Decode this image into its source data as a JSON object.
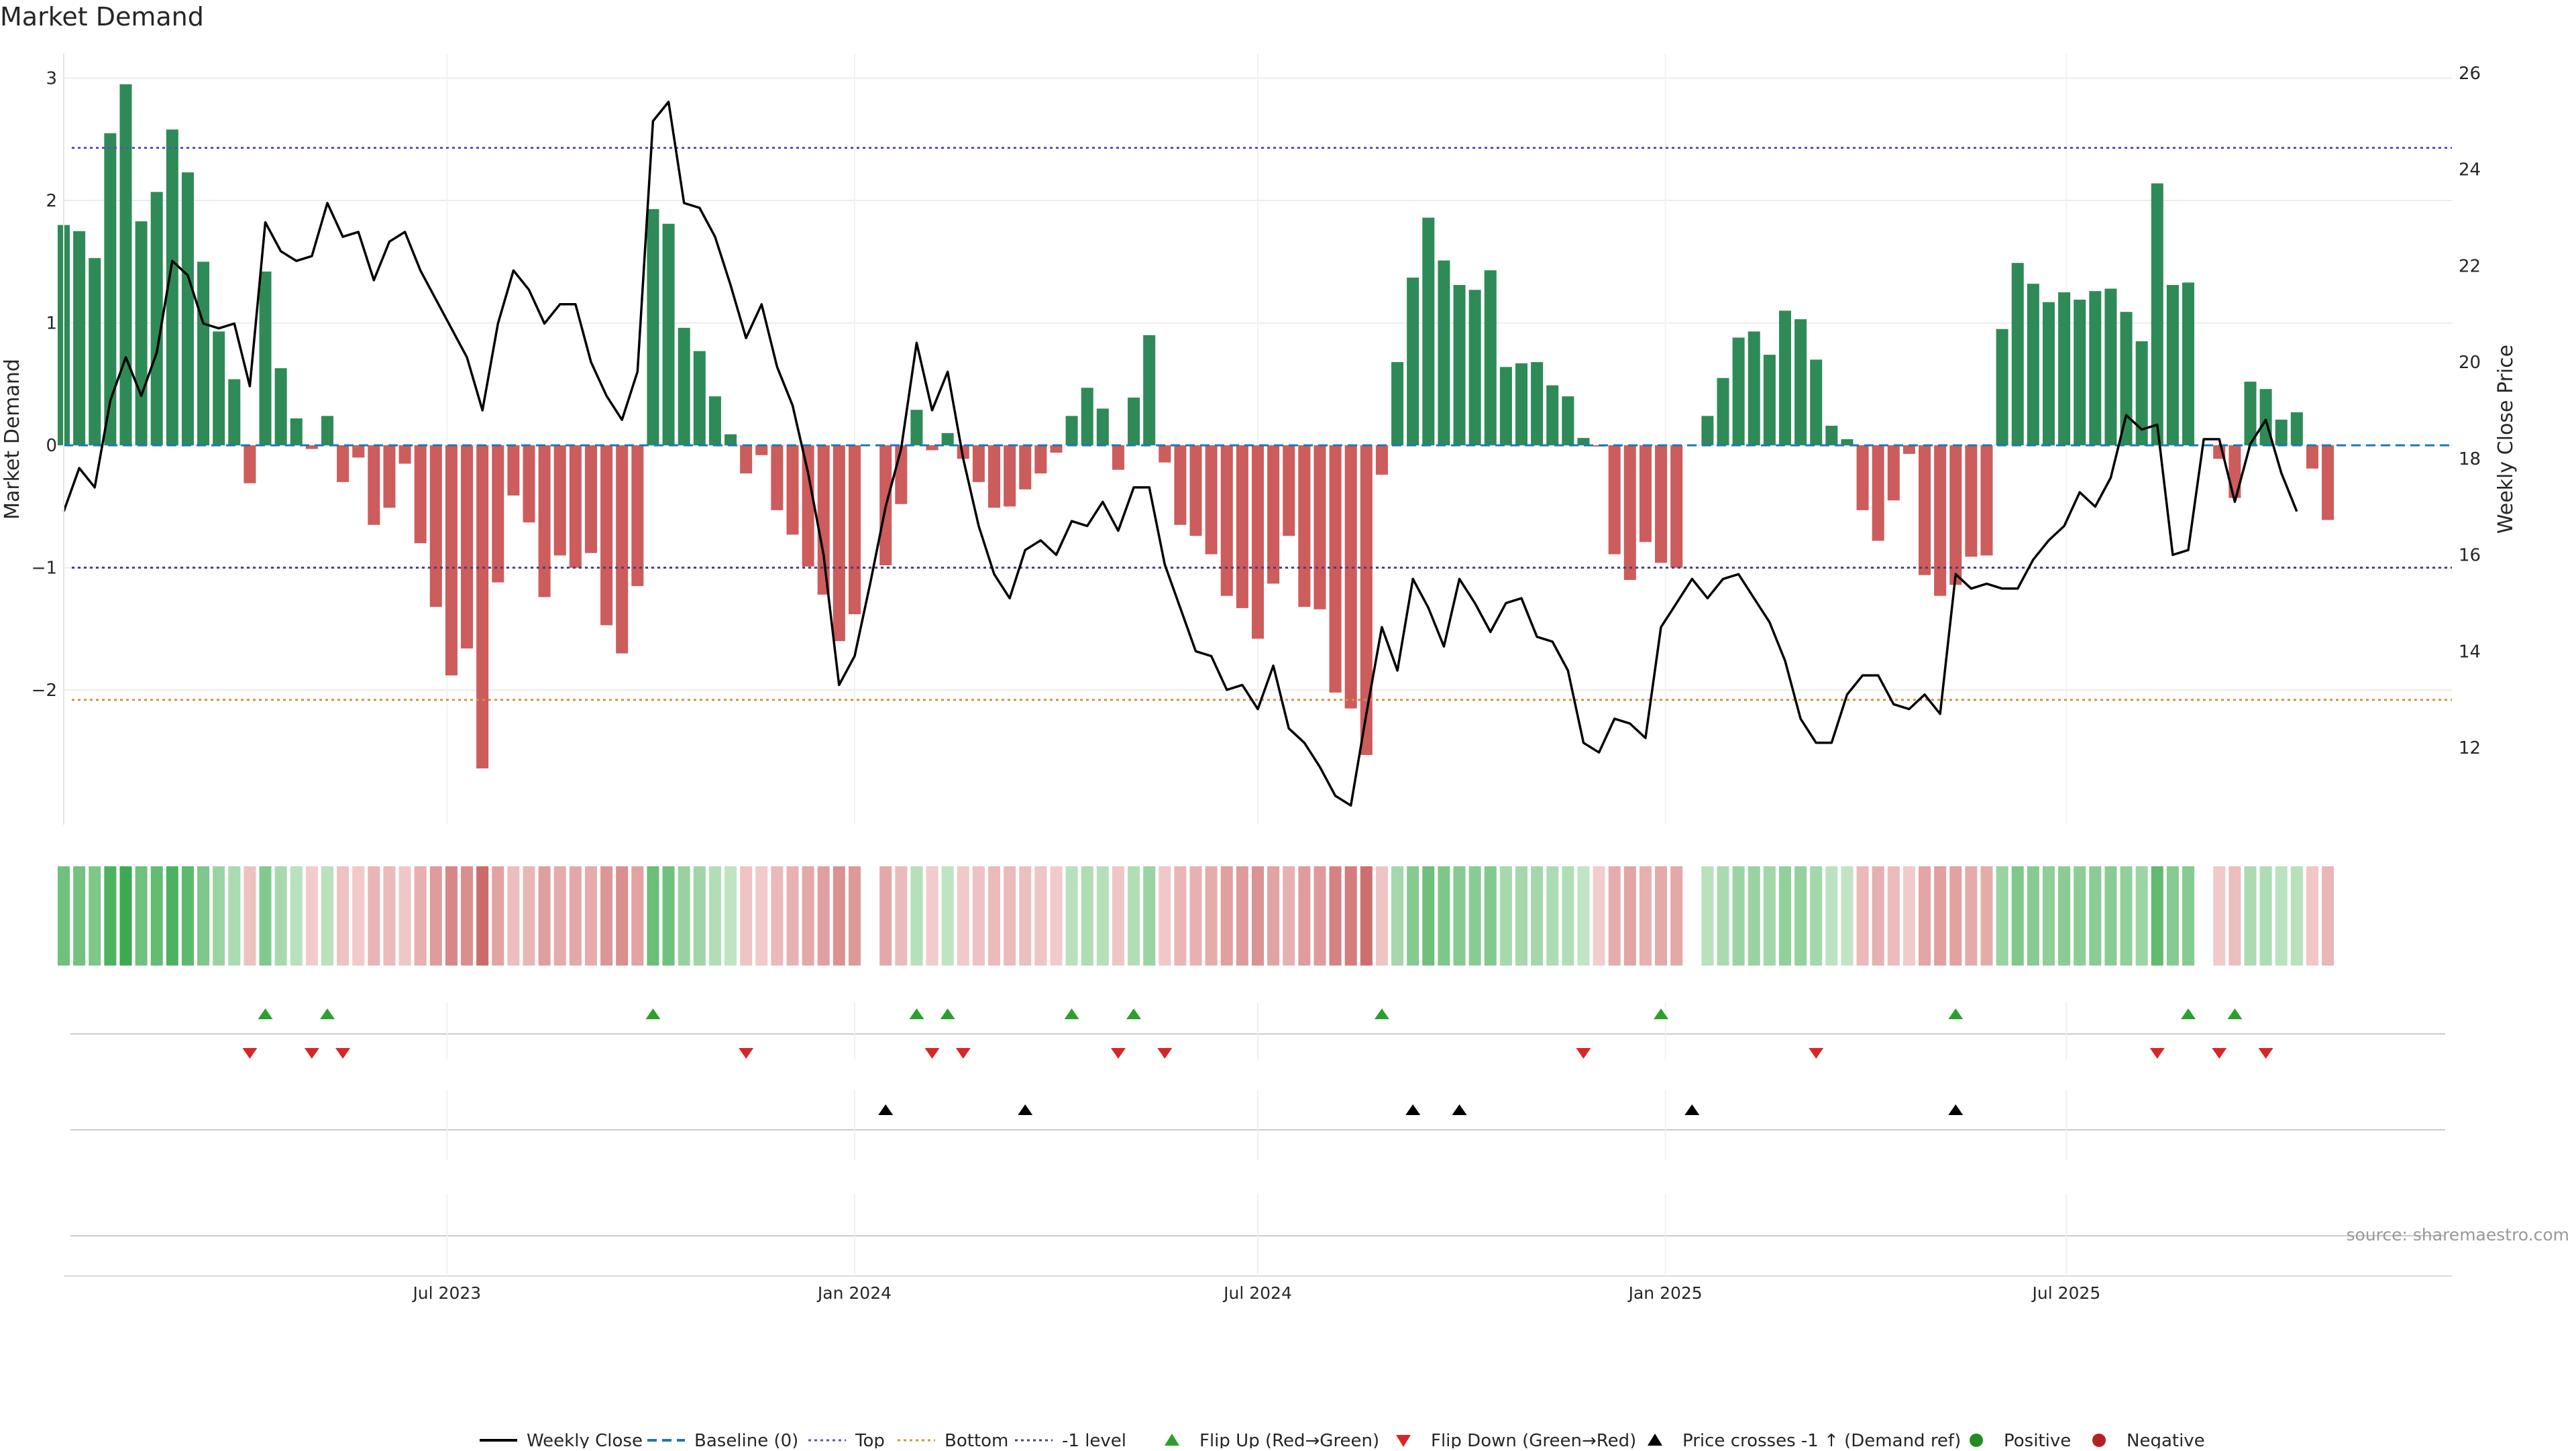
{
  "chart_data": {
    "type": "bar",
    "title": "Market Demand",
    "ylabel_left": "Market Demand",
    "ylabel_right": "Weekly Close Price",
    "source": "source: sharemaestro.com",
    "x_start": "2023-01-09",
    "week_interval_days": 7,
    "x_range": [
      "2023-01-09",
      "2025-12-22"
    ],
    "y_left_range": [
      -3.1,
      3.2
    ],
    "y_right_range": [
      10.4,
      26.4
    ],
    "y_left_ticks": [
      3,
      2,
      1,
      0,
      -1,
      -2
    ],
    "y_left_tick_labels": [
      "3",
      "2",
      "1",
      "0",
      "−1",
      "−2"
    ],
    "y_right_ticks": [
      26,
      24,
      22,
      20,
      18,
      16,
      14,
      12
    ],
    "y_right_tick_labels": [
      "26",
      "24",
      "22",
      "20",
      "18",
      "16",
      "14",
      "12"
    ],
    "x_ticks": [
      {
        "date": "2023-07-01",
        "label": "Jul 2023"
      },
      {
        "date": "2024-01-01",
        "label": "Jan 2024"
      },
      {
        "date": "2024-07-01",
        "label": "Jul 2024"
      },
      {
        "date": "2025-01-01",
        "label": "Jan 2025"
      },
      {
        "date": "2025-07-01",
        "label": "Jul 2025"
      }
    ],
    "reference_lines": {
      "baseline": 0,
      "top": 2.43,
      "bottom": -2.08,
      "minus_one": -1
    },
    "demand": [
      1.8,
      1.75,
      1.53,
      2.55,
      2.95,
      1.83,
      2.07,
      2.58,
      2.23,
      1.5,
      0.93,
      0.54,
      -0.31,
      1.42,
      0.63,
      0.22,
      -0.03,
      0.24,
      -0.3,
      -0.1,
      -0.65,
      -0.51,
      -0.15,
      -0.8,
      -1.32,
      -1.88,
      -1.66,
      -2.64,
      -1.12,
      -0.41,
      -0.63,
      -1.24,
      -0.9,
      -1.0,
      -0.88,
      -1.47,
      -1.7,
      -1.15,
      1.93,
      1.81,
      0.96,
      0.77,
      0.4,
      0.09,
      -0.23,
      -0.08,
      -0.53,
      -0.73,
      -0.99,
      -1.22,
      -1.6,
      -1.38,
      0.0,
      -0.98,
      -0.48,
      0.29,
      -0.04,
      0.1,
      -0.11,
      -0.3,
      -0.51,
      -0.5,
      -0.36,
      -0.23,
      -0.06,
      0.24,
      0.47,
      0.3,
      -0.2,
      0.39,
      0.9,
      -0.14,
      -0.65,
      -0.74,
      -0.89,
      -1.23,
      -1.33,
      -1.58,
      -1.13,
      -0.74,
      -1.32,
      -1.34,
      -2.02,
      -2.15,
      -2.53,
      -0.24,
      0.68,
      1.37,
      1.86,
      1.51,
      1.31,
      1.27,
      1.43,
      0.64,
      0.67,
      0.68,
      0.49,
      0.4,
      0.06,
      -0.01,
      -0.89,
      -1.1,
      -0.79,
      -0.96,
      -1.0,
      0.0,
      0.24,
      0.55,
      0.88,
      0.93,
      0.74,
      1.1,
      1.03,
      0.7,
      0.16,
      0.05,
      -0.53,
      -0.78,
      -0.45,
      -0.07,
      -1.06,
      -1.23,
      -1.14,
      -0.91,
      -0.9,
      0.95,
      1.49,
      1.32,
      1.17,
      1.25,
      1.19,
      1.26,
      1.28,
      1.09,
      0.85,
      2.14,
      1.31,
      1.33,
      0.0,
      -0.11,
      -0.43,
      0.52,
      0.46,
      0.21,
      0.27,
      -0.19,
      -0.61
    ],
    "close": [
      16.9,
      17.8,
      17.4,
      19.2,
      20.1,
      19.3,
      20.2,
      22.1,
      21.8,
      20.8,
      20.7,
      20.8,
      19.5,
      22.9,
      22.3,
      22.1,
      22.2,
      23.3,
      22.6,
      22.7,
      21.7,
      22.5,
      22.7,
      21.9,
      21.3,
      20.7,
      20.1,
      19.0,
      20.8,
      21.9,
      21.5,
      20.8,
      21.2,
      21.2,
      20.0,
      19.3,
      18.8,
      19.8,
      25.0,
      25.4,
      23.3,
      23.2,
      22.6,
      21.6,
      20.5,
      21.2,
      19.9,
      19.1,
      17.7,
      16.0,
      13.3,
      13.9,
      15.4,
      17.0,
      18.2,
      20.4,
      19.0,
      19.8,
      18.0,
      16.6,
      15.6,
      15.1,
      16.1,
      16.3,
      16.0,
      16.7,
      16.6,
      17.1,
      16.5,
      17.4,
      17.4,
      15.8,
      14.9,
      14.0,
      13.9,
      13.2,
      13.3,
      12.8,
      13.7,
      12.4,
      12.1,
      11.6,
      11.0,
      10.8,
      12.7,
      14.5,
      13.6,
      15.5,
      14.9,
      14.1,
      15.5,
      15.0,
      14.4,
      15.0,
      15.1,
      14.3,
      14.2,
      13.6,
      12.1,
      11.9,
      12.6,
      12.5,
      12.2,
      14.5,
      15.0,
      15.5,
      15.1,
      15.5,
      15.6,
      15.1,
      14.6,
      13.8,
      12.6,
      12.1,
      12.1,
      13.1,
      13.5,
      13.5,
      12.9,
      12.8,
      13.1,
      12.7,
      15.6,
      15.3,
      15.4,
      15.3,
      15.3,
      15.9,
      16.3,
      16.6,
      17.3,
      17.0,
      17.6,
      18.9,
      18.6,
      18.7,
      16.0,
      16.1,
      18.4,
      18.4,
      17.1,
      18.3,
      18.8,
      17.7,
      16.9
    ],
    "flip_up_weeks": [
      13,
      17,
      38,
      55,
      57,
      65,
      69,
      85,
      103,
      122,
      137,
      140
    ],
    "flip_down_weeks": [
      12,
      16,
      18,
      44,
      56,
      58,
      68,
      71,
      98,
      113,
      135,
      139,
      142
    ],
    "price_cross_weeks": [
      53,
      62,
      87,
      90,
      105,
      122
    ],
    "colors": {
      "positive_bar": "#2e8b57",
      "negative_bar": "#cd5c5c",
      "close_line": "#000000",
      "baseline": "#1f77b4",
      "top": "#5b4ec4",
      "bottom": "#d4943a",
      "minus_one": "#4b3f72",
      "flip_up": "#2ca02c",
      "flip_down": "#d62728",
      "price_cross": "#000000",
      "positive_dot": "#228b22",
      "negative_dot": "#b22222"
    },
    "legend": [
      {
        "label": "Weekly Close",
        "kind": "solid-line"
      },
      {
        "label": "Baseline (0)",
        "kind": "dashed-line"
      },
      {
        "label": "Top",
        "kind": "dotted-line"
      },
      {
        "label": "Bottom",
        "kind": "dotted-line"
      },
      {
        "label": "-1 level",
        "kind": "dotted-line"
      },
      {
        "label": "Flip Up (Red→Green)",
        "kind": "triangle-up"
      },
      {
        "label": "Flip Down (Green→Red)",
        "kind": "triangle-down"
      },
      {
        "label": "Price crosses -1 ↑ (Demand ref)",
        "kind": "triangle-up"
      },
      {
        "label": "Positive",
        "kind": "dot"
      },
      {
        "label": "Negative",
        "kind": "dot"
      }
    ],
    "legend_position": "bottom-center"
  }
}
